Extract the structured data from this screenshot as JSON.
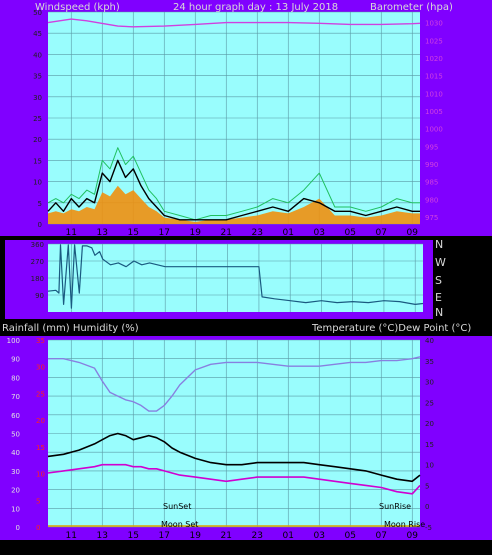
{
  "colors": {
    "plot_bg": "#99fdfd",
    "frame": "#8000ff",
    "grid": "#5a9aa6",
    "wind": "#000000",
    "gust": "#20c060",
    "gust_fill": "#f09010",
    "barometer": "#d040e0",
    "direction": "#1a5a80",
    "humidity": "#8880e0",
    "temperature": "#000000",
    "dewpoint": "#d000d0",
    "rain_axis": "#ff2020"
  },
  "chart_data": [
    {
      "type": "line",
      "id": "wind",
      "header_left": "Windspeed (kph)",
      "header_center": "24 hour graph day : 13 July 2018",
      "header_right": "Barometer (hpa)",
      "xticks": [
        "11",
        "13",
        "15",
        "17",
        "19",
        "21",
        "23",
        "01",
        "03",
        "05",
        "07",
        "09"
      ],
      "x_hours": [
        11,
        13,
        15,
        17,
        19,
        21,
        23,
        25,
        27,
        29,
        31,
        33
      ],
      "xlim": [
        9.5,
        33.5
      ],
      "yleft_ticks": [
        "50",
        "45",
        "40",
        "35",
        "30",
        "25",
        "20",
        "15",
        "10",
        "5",
        "0"
      ],
      "ylim_left": [
        0,
        50
      ],
      "yright_ticks": [
        "1030",
        "1025",
        "1020",
        "1015",
        "1010",
        "1005",
        "1000",
        "995",
        "990",
        "985",
        "980",
        "975"
      ],
      "ylim_right": [
        973,
        1033
      ],
      "series": [
        {
          "key": "wind",
          "x": [
            9.5,
            10,
            10.5,
            11,
            11.5,
            12,
            12.5,
            13,
            13.5,
            14,
            14.5,
            15,
            15.5,
            16,
            16.5,
            17,
            18,
            19,
            20,
            21,
            22,
            23,
            24,
            25,
            26,
            27,
            28,
            29,
            30,
            31,
            32,
            33,
            33.5
          ],
          "values": [
            3,
            5,
            3,
            6,
            4,
            6,
            5,
            12,
            10,
            15,
            11,
            13,
            9,
            6,
            4,
            2,
            1,
            1,
            1,
            1,
            2,
            3,
            4,
            3,
            6,
            5,
            3,
            3,
            2,
            3,
            4,
            3,
            3
          ]
        },
        {
          "key": "gust",
          "x": [
            9.5,
            10,
            10.5,
            11,
            11.5,
            12,
            12.5,
            13,
            13.5,
            14,
            14.5,
            15,
            15.5,
            16,
            16.5,
            17,
            18,
            19,
            20,
            21,
            22,
            23,
            24,
            25,
            26,
            27,
            28,
            29,
            30,
            31,
            32,
            33,
            33.5
          ],
          "values": [
            5,
            6,
            5,
            7,
            6,
            8,
            7,
            15,
            13,
            18,
            14,
            16,
            12,
            8,
            6,
            3,
            2,
            1,
            2,
            2,
            3,
            4,
            6,
            5,
            8,
            12,
            4,
            4,
            3,
            4,
            6,
            5,
            5
          ]
        },
        {
          "key": "barometer",
          "x": [
            9.5,
            11,
            12,
            14,
            15,
            17,
            19,
            21,
            23,
            25,
            27,
            29,
            31,
            33,
            33.5
          ],
          "values": [
            1030,
            1031,
            1030.5,
            1029,
            1028.8,
            1029,
            1029.5,
            1030,
            1030,
            1030,
            1029.8,
            1029.5,
            1029.5,
            1029.7,
            1029.8
          ]
        }
      ]
    },
    {
      "type": "line",
      "id": "direction",
      "y_labels": [
        "N",
        "W",
        "S",
        "E",
        "N"
      ],
      "yleft_ticks": [
        "360",
        "270",
        "180",
        "90"
      ],
      "ylim": [
        0,
        360
      ],
      "series": [
        {
          "key": "direction",
          "x": [
            9.5,
            10,
            10.2,
            10.3,
            10.5,
            10.8,
            11,
            11.2,
            11.5,
            11.7,
            12,
            12.3,
            12.5,
            12.8,
            13,
            13.5,
            14,
            14.5,
            15,
            15.5,
            16,
            16.5,
            17,
            19,
            21,
            23,
            23.2,
            24,
            25,
            26,
            27,
            28,
            29,
            30,
            31,
            32,
            33,
            33.5
          ],
          "values": [
            110,
            115,
            100,
            355,
            40,
            355,
            20,
            355,
            100,
            350,
            350,
            340,
            300,
            320,
            280,
            250,
            260,
            240,
            270,
            250,
            260,
            250,
            240,
            240,
            240,
            240,
            80,
            70,
            60,
            50,
            60,
            50,
            55,
            50,
            60,
            55,
            40,
            45
          ]
        }
      ]
    },
    {
      "type": "line",
      "id": "temp",
      "header_left": "Rainfall (mm)  Humidity (%)",
      "header_right": "Temperature (°C)Dew Point (°C)",
      "yleft_ticks": [
        "100",
        "90",
        "80",
        "70",
        "60",
        "50",
        "40",
        "30",
        "20",
        "10",
        "0"
      ],
      "ylim_left": [
        0,
        100
      ],
      "rain_ticks": [
        "35",
        "30",
        "25",
        "20",
        "15",
        "10",
        "5",
        "0"
      ],
      "yright_ticks": [
        "40",
        "35",
        "30",
        "25",
        "20",
        "15",
        "10",
        "5",
        "0",
        "-5"
      ],
      "ylim_right": [
        -5,
        40
      ],
      "annotations": {
        "sunset": "SunSet",
        "sunrise": "SunRise",
        "moonset": "Moon Set",
        "moonrise": "Moon Rise"
      },
      "series": [
        {
          "key": "humidity",
          "x": [
            9.5,
            10.5,
            11.5,
            12.5,
            13,
            13.5,
            14,
            14.5,
            15,
            15.5,
            16,
            16.5,
            17,
            17.5,
            18,
            19,
            20,
            21,
            22,
            23,
            24,
            25,
            26,
            27,
            28,
            29,
            30,
            31,
            32,
            33,
            33.5
          ],
          "values": [
            90,
            90,
            88,
            85,
            78,
            72,
            70,
            68,
            67,
            65,
            62,
            62,
            65,
            70,
            76,
            84,
            87,
            88,
            88,
            88,
            87,
            86,
            86,
            86,
            87,
            88,
            88,
            89,
            89,
            90,
            91
          ]
        },
        {
          "key": "temperature",
          "x": [
            9.5,
            10.5,
            11.5,
            12.5,
            13,
            13.5,
            14,
            14.5,
            15,
            15.5,
            16,
            16.5,
            17,
            17.5,
            18,
            19,
            20,
            21,
            22,
            23,
            24,
            25,
            26,
            27,
            28,
            29,
            30,
            31,
            32,
            33,
            33.5
          ],
          "values": [
            12,
            12.5,
            13.5,
            15,
            16,
            17,
            17.5,
            17,
            16,
            16.5,
            17,
            16.5,
            15.5,
            14,
            13,
            11.5,
            10.5,
            10,
            10,
            10.5,
            10.5,
            10.5,
            10.5,
            10,
            9.5,
            9,
            8.5,
            7.5,
            6.5,
            6,
            7.5
          ]
        },
        {
          "key": "dewpoint",
          "x": [
            9.5,
            10.5,
            11.5,
            12.5,
            13,
            13.5,
            14,
            14.5,
            15,
            15.5,
            16,
            16.5,
            17,
            17.5,
            18,
            19,
            20,
            21,
            22,
            23,
            24,
            25,
            26,
            27,
            28,
            29,
            30,
            31,
            32,
            33,
            33.5
          ],
          "values": [
            8,
            8.5,
            9,
            9.5,
            10,
            10,
            10,
            10,
            9.5,
            9.5,
            9,
            9,
            8.5,
            8,
            7.5,
            7,
            6.5,
            6,
            6.5,
            7,
            7,
            7,
            7,
            6.5,
            6,
            5.5,
            5,
            4.5,
            3.5,
            3,
            5
          ]
        }
      ]
    }
  ]
}
